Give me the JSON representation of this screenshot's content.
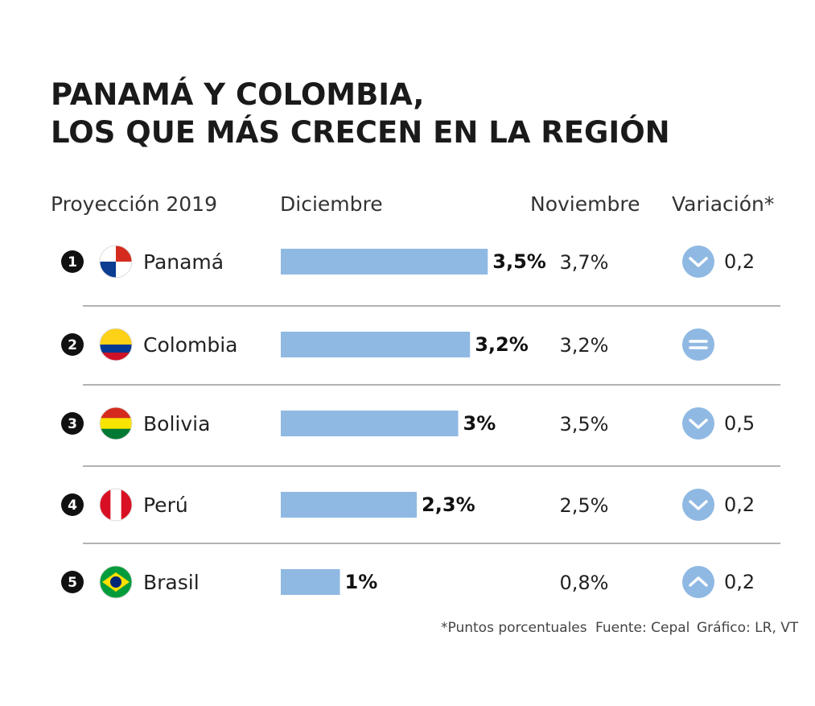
{
  "title": [
    "PANAMÁ Y COLOMBIA,",
    "LOS QUE MÁS CRECEN EN LA REGIÓN"
  ],
  "chart_data": {
    "type": "bar",
    "headers": [
      "Proyección 2019",
      "Diciembre",
      "Noviembre",
      "Variación*"
    ],
    "ranks": [
      1,
      2,
      3,
      4,
      5
    ],
    "categories": [
      "Panamá",
      "Colombia",
      "Bolivia",
      "Perú",
      "Brasil"
    ],
    "values": [
      3.5,
      3.2,
      3,
      2.3,
      1
    ],
    "value_labels": [
      "3,5%",
      "3,2%",
      "3%",
      "2,3%",
      "1%"
    ],
    "color": "#8fb9e3",
    "november": [
      "3,7%",
      "3,2%",
      "3,5%",
      "2,5%",
      "0,8%"
    ],
    "variation": [
      "0,2",
      null,
      "0,5",
      "0,2",
      "0,2"
    ],
    "direction": [
      "down",
      "equal",
      "down",
      "down",
      "up"
    ]
  },
  "footer": [
    "*Puntos porcentuales",
    "Fuente: Cepal",
    "Gráfico: LR, VT"
  ]
}
